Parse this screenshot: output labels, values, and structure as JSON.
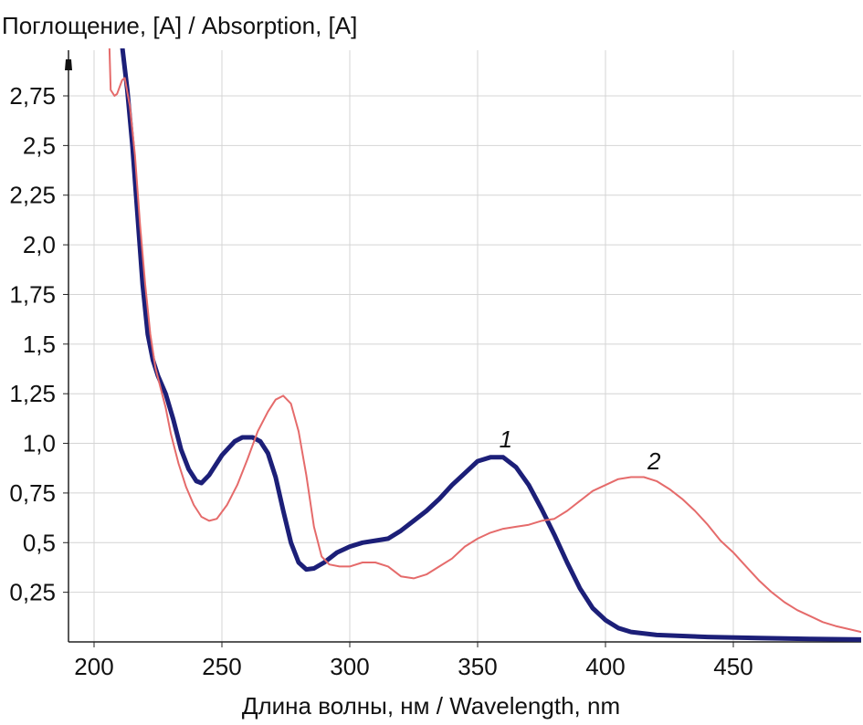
{
  "chart_data": {
    "type": "line",
    "ylabel": "Поглощение, [A] / Absorption, [A]",
    "xlabel": "Длина волны, нм / Wavelength, nm",
    "xlim": [
      190,
      500
    ],
    "ylim": [
      0,
      2.98
    ],
    "x_ticks": [
      200,
      250,
      300,
      350,
      400,
      450
    ],
    "x_tick_labels": [
      "200",
      "250",
      "300",
      "350",
      "400",
      "450"
    ],
    "y_ticks": [
      0.25,
      0.5,
      0.75,
      1.0,
      1.25,
      1.5,
      1.75,
      2.0,
      2.25,
      2.5,
      2.75
    ],
    "y_tick_labels": [
      "0,25",
      "0,5",
      "0,75",
      "1,0",
      "1,25",
      "1,5",
      "1,75",
      "2,0",
      "2,25",
      "2,5",
      "2,75"
    ],
    "grid": true,
    "series": [
      {
        "name": "1",
        "color": "#1c1f78",
        "style": "thick",
        "points": [
          [
            211,
            3.0
          ],
          [
            213,
            2.78
          ],
          [
            215,
            2.5
          ],
          [
            217,
            2.15
          ],
          [
            219,
            1.8
          ],
          [
            221,
            1.55
          ],
          [
            223,
            1.42
          ],
          [
            225,
            1.34
          ],
          [
            228,
            1.25
          ],
          [
            231,
            1.12
          ],
          [
            234,
            0.97
          ],
          [
            237,
            0.87
          ],
          [
            240,
            0.81
          ],
          [
            242,
            0.8
          ],
          [
            245,
            0.84
          ],
          [
            250,
            0.94
          ],
          [
            255,
            1.01
          ],
          [
            258,
            1.03
          ],
          [
            262,
            1.03
          ],
          [
            265,
            1.01
          ],
          [
            268,
            0.95
          ],
          [
            271,
            0.83
          ],
          [
            274,
            0.66
          ],
          [
            277,
            0.5
          ],
          [
            280,
            0.4
          ],
          [
            283,
            0.365
          ],
          [
            286,
            0.37
          ],
          [
            290,
            0.4
          ],
          [
            295,
            0.45
          ],
          [
            300,
            0.48
          ],
          [
            305,
            0.5
          ],
          [
            310,
            0.51
          ],
          [
            315,
            0.52
          ],
          [
            320,
            0.56
          ],
          [
            325,
            0.61
          ],
          [
            330,
            0.66
          ],
          [
            335,
            0.72
          ],
          [
            340,
            0.79
          ],
          [
            345,
            0.85
          ],
          [
            350,
            0.91
          ],
          [
            355,
            0.93
          ],
          [
            360,
            0.93
          ],
          [
            365,
            0.88
          ],
          [
            370,
            0.79
          ],
          [
            375,
            0.67
          ],
          [
            380,
            0.54
          ],
          [
            385,
            0.4
          ],
          [
            390,
            0.27
          ],
          [
            395,
            0.17
          ],
          [
            400,
            0.11
          ],
          [
            405,
            0.07
          ],
          [
            410,
            0.05
          ],
          [
            420,
            0.035
          ],
          [
            440,
            0.025
          ],
          [
            460,
            0.02
          ],
          [
            480,
            0.015
          ],
          [
            500,
            0.012
          ]
        ]
      },
      {
        "name": "2",
        "color": "#e56b6b",
        "style": "thin",
        "points": [
          [
            206,
            3.0
          ],
          [
            206.5,
            2.78
          ],
          [
            208,
            2.75
          ],
          [
            209,
            2.76
          ],
          [
            211,
            2.83
          ],
          [
            212,
            2.84
          ],
          [
            214,
            2.7
          ],
          [
            216,
            2.45
          ],
          [
            218,
            2.1
          ],
          [
            220,
            1.8
          ],
          [
            222,
            1.55
          ],
          [
            224,
            1.38
          ],
          [
            226,
            1.28
          ],
          [
            228,
            1.18
          ],
          [
            230,
            1.05
          ],
          [
            233,
            0.9
          ],
          [
            236,
            0.78
          ],
          [
            239,
            0.69
          ],
          [
            242,
            0.63
          ],
          [
            245,
            0.61
          ],
          [
            248,
            0.62
          ],
          [
            252,
            0.69
          ],
          [
            256,
            0.79
          ],
          [
            260,
            0.92
          ],
          [
            264,
            1.06
          ],
          [
            268,
            1.16
          ],
          [
            271,
            1.22
          ],
          [
            274,
            1.24
          ],
          [
            277,
            1.2
          ],
          [
            280,
            1.06
          ],
          [
            283,
            0.84
          ],
          [
            286,
            0.58
          ],
          [
            289,
            0.43
          ],
          [
            292,
            0.39
          ],
          [
            296,
            0.38
          ],
          [
            300,
            0.38
          ],
          [
            305,
            0.4
          ],
          [
            310,
            0.4
          ],
          [
            315,
            0.38
          ],
          [
            320,
            0.33
          ],
          [
            325,
            0.32
          ],
          [
            330,
            0.34
          ],
          [
            335,
            0.38
          ],
          [
            340,
            0.42
          ],
          [
            345,
            0.48
          ],
          [
            350,
            0.52
          ],
          [
            355,
            0.55
          ],
          [
            360,
            0.57
          ],
          [
            365,
            0.58
          ],
          [
            370,
            0.59
          ],
          [
            375,
            0.61
          ],
          [
            380,
            0.62
          ],
          [
            385,
            0.66
          ],
          [
            390,
            0.71
          ],
          [
            395,
            0.76
          ],
          [
            400,
            0.79
          ],
          [
            405,
            0.82
          ],
          [
            410,
            0.83
          ],
          [
            415,
            0.83
          ],
          [
            420,
            0.81
          ],
          [
            425,
            0.77
          ],
          [
            430,
            0.72
          ],
          [
            435,
            0.66
          ],
          [
            440,
            0.59
          ],
          [
            445,
            0.51
          ],
          [
            450,
            0.45
          ],
          [
            455,
            0.38
          ],
          [
            460,
            0.31
          ],
          [
            465,
            0.25
          ],
          [
            470,
            0.2
          ],
          [
            475,
            0.16
          ],
          [
            480,
            0.13
          ],
          [
            485,
            0.1
          ],
          [
            490,
            0.08
          ],
          [
            495,
            0.065
          ],
          [
            500,
            0.05
          ]
        ]
      }
    ],
    "annotations": [
      {
        "text": "1",
        "x": 361,
        "y": 0.98
      },
      {
        "text": "2",
        "x": 419,
        "y": 0.87
      }
    ]
  }
}
